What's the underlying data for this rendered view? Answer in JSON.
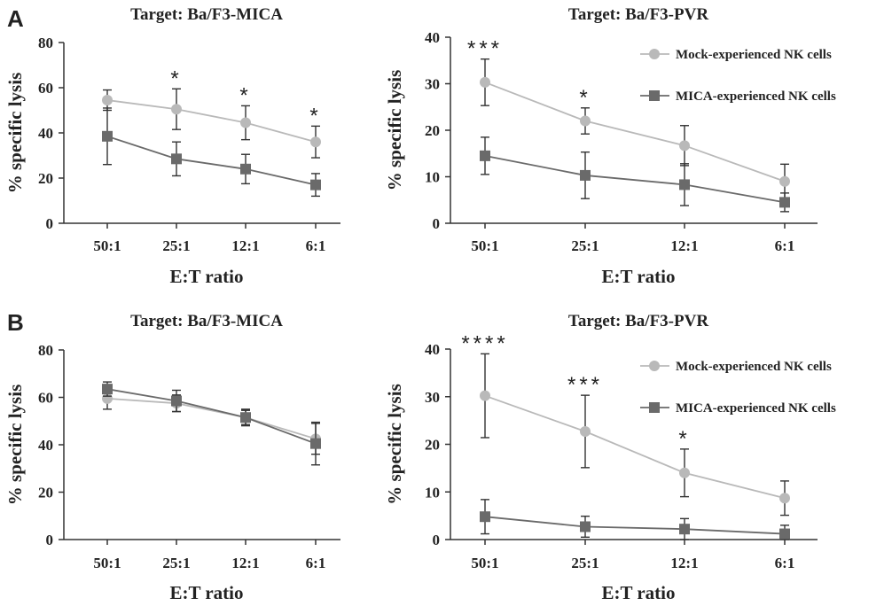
{
  "panels": [
    {
      "letter": "A"
    },
    {
      "letter": "B"
    }
  ],
  "colors": {
    "mock": "#b9b9b9",
    "mica": "#6a6a6a",
    "axis": "#333333",
    "error": "#333333"
  },
  "chart_data": [
    {
      "type": "line",
      "panel": "A",
      "title": "Target: Ba/F3-MICA",
      "xlabel": "E:T ratio",
      "ylabel": "% specific lysis",
      "categories": [
        "50:1",
        "25:1",
        "12:1",
        "6:1"
      ],
      "ylim": [
        0,
        80
      ],
      "yticks": [
        0,
        20,
        40,
        60,
        80
      ],
      "grid": false,
      "series": [
        {
          "name": "Mock-experienced NK cells",
          "marker": "circle",
          "values": [
            54.5,
            50.5,
            44.5,
            36
          ],
          "errors": [
            4.5,
            9,
            7.5,
            7
          ]
        },
        {
          "name": "MICA-experienced NK cells",
          "marker": "square",
          "values": [
            38.5,
            28.5,
            24,
            17
          ],
          "errors": [
            12.5,
            7.5,
            6.5,
            5
          ]
        }
      ],
      "significance": [
        "",
        "*",
        "*",
        "*"
      ],
      "legend": false
    },
    {
      "type": "line",
      "panel": "A",
      "title": "Target: Ba/F3-PVR",
      "xlabel": "E:T ratio",
      "ylabel": "% specific lysis",
      "categories": [
        "50:1",
        "25:1",
        "12:1",
        "6:1"
      ],
      "ylim": [
        0,
        40
      ],
      "yticks": [
        0,
        10,
        20,
        30,
        40
      ],
      "grid": false,
      "series": [
        {
          "name": "Mock-experienced NK cells",
          "marker": "circle",
          "values": [
            30.3,
            22,
            16.7,
            9
          ],
          "errors": [
            5,
            2.8,
            4.3,
            3.7
          ]
        },
        {
          "name": "MICA-experienced NK cells",
          "marker": "square",
          "values": [
            14.5,
            10.3,
            8.3,
            4.5
          ],
          "errors": [
            4,
            5,
            4.5,
            2
          ]
        }
      ],
      "significance": [
        "***",
        "*",
        "",
        ""
      ],
      "legend": true,
      "legend_position": "top-right"
    },
    {
      "type": "line",
      "panel": "B",
      "title": "Target: Ba/F3-MICA",
      "xlabel": "E:T ratio",
      "ylabel": "% specific lysis",
      "categories": [
        "50:1",
        "25:1",
        "12:1",
        "6:1"
      ],
      "ylim": [
        0,
        80
      ],
      "yticks": [
        0,
        20,
        40,
        60,
        80
      ],
      "grid": false,
      "series": [
        {
          "name": "Mock-experienced NK cells",
          "marker": "circle",
          "values": [
            59.5,
            57.5,
            51.5,
            42.5
          ],
          "errors": [
            4.5,
            3.5,
            3,
            6.5
          ]
        },
        {
          "name": "MICA-experienced NK cells",
          "marker": "square",
          "values": [
            63.5,
            58.5,
            51.5,
            40.5
          ],
          "errors": [
            3,
            4.5,
            3.5,
            9
          ]
        }
      ],
      "significance": [
        "",
        "",
        "",
        ""
      ],
      "legend": false
    },
    {
      "type": "line",
      "panel": "B",
      "title": "Target: Ba/F3-PVR",
      "xlabel": "E:T ratio",
      "ylabel": "% specific lysis",
      "categories": [
        "50:1",
        "25:1",
        "12:1",
        "6:1"
      ],
      "ylim": [
        0,
        40
      ],
      "yticks": [
        0,
        10,
        20,
        30,
        40
      ],
      "grid": false,
      "series": [
        {
          "name": "Mock-experienced NK cells",
          "marker": "circle",
          "values": [
            30.2,
            22.7,
            14,
            8.7
          ],
          "errors": [
            8.8,
            7.6,
            5,
            3.6
          ]
        },
        {
          "name": "MICA-experienced NK cells",
          "marker": "square",
          "values": [
            4.8,
            2.7,
            2.2,
            1.2
          ],
          "errors": [
            3.6,
            2.2,
            2.2,
            1.8
          ]
        }
      ],
      "significance": [
        "****",
        "***",
        "*",
        ""
      ],
      "legend": true,
      "legend_position": "top-right"
    }
  ]
}
